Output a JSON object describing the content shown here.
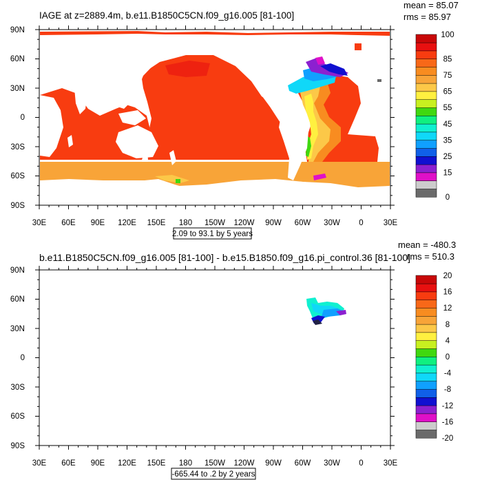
{
  "panels": [
    {
      "title": "IAGE at z=2889.4m, b.e11.B1850C5CN.f09_g16.005 [81-100]",
      "mean": "mean = 85.07",
      "rms": "rms = 85.97",
      "range_note": "2.09 to 93.1 by 5 years",
      "lat_ticks": [
        "90N",
        "60N",
        "30N",
        "0",
        "30S",
        "60S",
        "90S"
      ],
      "lon_ticks": [
        "30E",
        "60E",
        "90E",
        "120E",
        "150E",
        "180",
        "150W",
        "120W",
        "90W",
        "60W",
        "30W",
        "0",
        "30E"
      ],
      "colorbar": {
        "colors": [
          "#6a6a6a",
          "#cccccc",
          "#e010c8",
          "#8c20d0",
          "#1010d0",
          "#1060e8",
          "#10a0ff",
          "#10d8f8",
          "#10f0d0",
          "#10f080",
          "#40d810",
          "#c8f020",
          "#fff040",
          "#fcc848",
          "#f8a438",
          "#f88c20",
          "#f86818",
          "#f83c10",
          "#e81010",
          "#c80808"
        ],
        "labels": [
          "0",
          "15",
          "25",
          "35",
          "45",
          "55",
          "65",
          "75",
          "85",
          "100"
        ]
      }
    },
    {
      "title": "b.e11.B1850C5CN.f09_g16.005 [81-100] - b.e15.B1850.f09_g16.pi_control.36 [81-100]",
      "mean": "mean = -480.3",
      "rms": "rms = 510.3",
      "range_note": "-665.44 to .2 by 2 years",
      "lat_ticks": [
        "90N",
        "60N",
        "30N",
        "0",
        "30S",
        "60S",
        "90S"
      ],
      "lon_ticks": [
        "30E",
        "60E",
        "90E",
        "120E",
        "150E",
        "180",
        "150W",
        "120W",
        "90W",
        "60W",
        "30W",
        "0",
        "30E"
      ],
      "colorbar": {
        "colors": [
          "#6a6a6a",
          "#cccccc",
          "#e010c8",
          "#8c20d0",
          "#1010d0",
          "#1060e8",
          "#10a0ff",
          "#10d8f8",
          "#10f0d0",
          "#10f080",
          "#40d810",
          "#c8f020",
          "#fff040",
          "#fcc848",
          "#f8a438",
          "#f88c20",
          "#f86818",
          "#f83c10",
          "#e81010",
          "#c80808"
        ],
        "labels": [
          "-20",
          "-16",
          "-12",
          "-8",
          "-4",
          "0",
          "4",
          "8",
          "12",
          "16",
          "20"
        ]
      }
    }
  ]
}
